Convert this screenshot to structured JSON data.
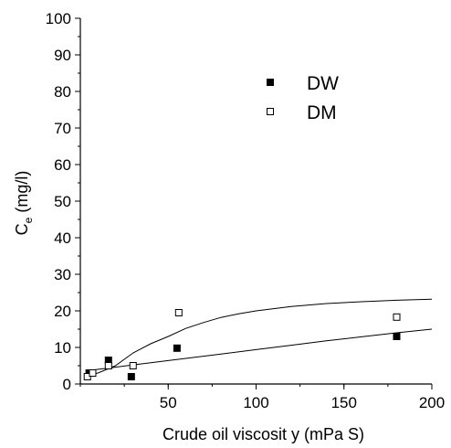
{
  "chart_data": {
    "type": "scatter",
    "xlabel": "Crude oil viscosit y (mPa S)",
    "ylabel": {
      "main": "C",
      "sub": "e",
      "rest": " (mg/l)"
    },
    "xlim": [
      0,
      200
    ],
    "ylim": [
      0,
      100
    ],
    "xticks": [
      50,
      100,
      150,
      200
    ],
    "yticks": [
      0,
      10,
      20,
      30,
      40,
      50,
      60,
      70,
      80,
      90,
      100
    ],
    "grid": false,
    "legend_position": "top-right",
    "series": [
      {
        "name": "DW",
        "marker": "filled-square",
        "points": [
          {
            "x": 5,
            "y": 3.0
          },
          {
            "x": 16,
            "y": 6.5
          },
          {
            "x": 29,
            "y": 2.0
          },
          {
            "x": 55,
            "y": 9.8
          },
          {
            "x": 180,
            "y": 13.0
          }
        ],
        "fit": [
          {
            "x": 3,
            "y": 3.6
          },
          {
            "x": 20,
            "y": 4.6
          },
          {
            "x": 40,
            "y": 5.8
          },
          {
            "x": 60,
            "y": 7.0
          },
          {
            "x": 80,
            "y": 8.2
          },
          {
            "x": 100,
            "y": 9.4
          },
          {
            "x": 120,
            "y": 10.6
          },
          {
            "x": 140,
            "y": 11.8
          },
          {
            "x": 160,
            "y": 12.9
          },
          {
            "x": 180,
            "y": 14.0
          },
          {
            "x": 200,
            "y": 15.0
          }
        ]
      },
      {
        "name": "DM",
        "marker": "open-square",
        "points": [
          {
            "x": 4,
            "y": 2.0
          },
          {
            "x": 7,
            "y": 3.0
          },
          {
            "x": 16,
            "y": 5.0
          },
          {
            "x": 30,
            "y": 5.0
          },
          {
            "x": 56,
            "y": 19.5
          },
          {
            "x": 180,
            "y": 18.3
          }
        ],
        "fit": [
          {
            "x": 3,
            "y": 2.2
          },
          {
            "x": 10,
            "y": 3.0
          },
          {
            "x": 20,
            "y": 5.0
          },
          {
            "x": 30,
            "y": 8.5
          },
          {
            "x": 40,
            "y": 11.0
          },
          {
            "x": 50,
            "y": 13.0
          },
          {
            "x": 60,
            "y": 15.2
          },
          {
            "x": 70,
            "y": 16.8
          },
          {
            "x": 80,
            "y": 18.2
          },
          {
            "x": 90,
            "y": 19.2
          },
          {
            "x": 100,
            "y": 20.0
          },
          {
            "x": 120,
            "y": 21.2
          },
          {
            "x": 140,
            "y": 22.0
          },
          {
            "x": 160,
            "y": 22.5
          },
          {
            "x": 180,
            "y": 22.9
          },
          {
            "x": 200,
            "y": 23.2
          }
        ]
      }
    ]
  }
}
